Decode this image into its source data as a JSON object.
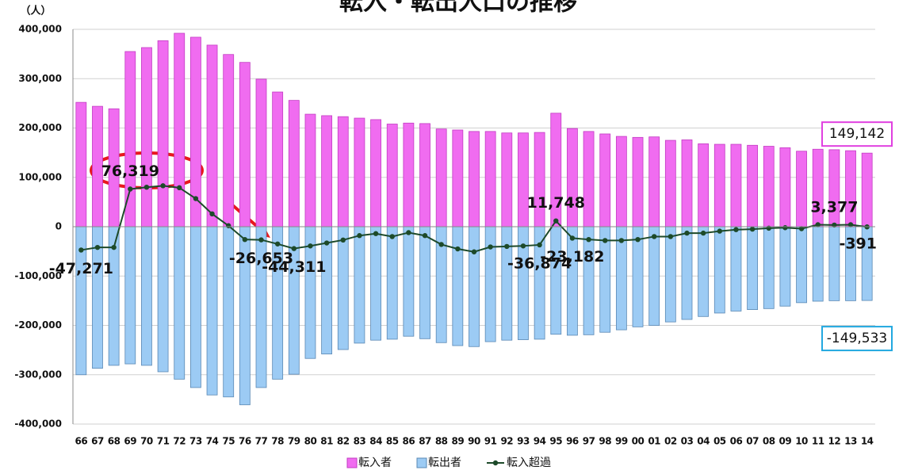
{
  "chart_data": {
    "type": "bar-line",
    "title": "転入・転出人口の推移",
    "y_unit": "（人）",
    "categories": [
      "66",
      "67",
      "68",
      "69",
      "70",
      "71",
      "72",
      "73",
      "74",
      "75",
      "76",
      "77",
      "78",
      "79",
      "80",
      "81",
      "82",
      "83",
      "84",
      "85",
      "86",
      "87",
      "88",
      "89",
      "90",
      "91",
      "92",
      "93",
      "94",
      "95",
      "96",
      "97",
      "98",
      "99",
      "00",
      "01",
      "02",
      "03",
      "04",
      "05",
      "06",
      "07",
      "08",
      "09",
      "10",
      "11",
      "12",
      "13",
      "14"
    ],
    "series": [
      {
        "name": "転入者",
        "type": "bar",
        "color": "#f06cf0",
        "values": [
          252000,
          244000,
          239000,
          355000,
          363000,
          377000,
          392000,
          384000,
          368000,
          349000,
          333000,
          299000,
          273000,
          256000,
          228000,
          225000,
          223000,
          220000,
          217000,
          208000,
          210000,
          209000,
          198000,
          196000,
          193000,
          193000,
          190000,
          190000,
          191000,
          230000,
          199000,
          193000,
          188000,
          183000,
          181000,
          182000,
          175000,
          176000,
          168000,
          167000,
          167000,
          165000,
          163000,
          160000,
          153000,
          157000,
          156000,
          154000,
          149142
        ],
        "value_labels": [
          null,
          null,
          null,
          null,
          null,
          null,
          null,
          null,
          null,
          null,
          null,
          null,
          null,
          null,
          null,
          null,
          null,
          null,
          null,
          null,
          null,
          null,
          null,
          null,
          null,
          null,
          null,
          null,
          null,
          null,
          null,
          null,
          null,
          null,
          null,
          null,
          null,
          null,
          null,
          null,
          null,
          null,
          null,
          null,
          null,
          null,
          null,
          null,
          "149,142"
        ]
      },
      {
        "name": "転出者",
        "type": "bar",
        "color": "#9ccbf4",
        "values": [
          -300000,
          -287000,
          -281000,
          -278000,
          -281000,
          -294000,
          -309000,
          -326000,
          -341000,
          -345000,
          -361000,
          -326000,
          -309000,
          -299000,
          -267000,
          -258000,
          -249000,
          -236000,
          -230000,
          -228000,
          -222000,
          -227000,
          -235000,
          -241000,
          -243000,
          -233000,
          -230000,
          -229000,
          -228000,
          -218000,
          -220000,
          -219000,
          -214000,
          -209000,
          -203000,
          -200000,
          -193000,
          -188000,
          -182000,
          -175000,
          -171000,
          -168000,
          -166000,
          -161000,
          -154000,
          -151000,
          -150000,
          -150000,
          -149533
        ],
        "value_labels": [
          null,
          null,
          null,
          null,
          null,
          null,
          null,
          null,
          null,
          null,
          null,
          null,
          null,
          null,
          null,
          null,
          null,
          null,
          null,
          null,
          null,
          null,
          null,
          null,
          null,
          null,
          null,
          null,
          null,
          null,
          null,
          null,
          null,
          null,
          null,
          null,
          null,
          null,
          null,
          null,
          null,
          null,
          null,
          null,
          null,
          null,
          null,
          null,
          "-149,533"
        ]
      },
      {
        "name": "転入超過",
        "type": "line",
        "color": "#1d4a2a",
        "values": [
          -47271,
          -42000,
          -42000,
          76319,
          80000,
          83000,
          79000,
          57000,
          26000,
          2000,
          -26000,
          -26653,
          -35000,
          -44311,
          -39000,
          -33000,
          -27000,
          -18000,
          -14000,
          -20000,
          -12000,
          -18000,
          -36000,
          -45000,
          -51000,
          -41000,
          -40000,
          -39000,
          -36874,
          11748,
          -23182,
          -26000,
          -28000,
          -28000,
          -26000,
          -20000,
          -20000,
          -13000,
          -13000,
          -9000,
          -6000,
          -5000,
          -3000,
          -2000,
          -4000,
          4000,
          3377,
          4000,
          -391
        ],
        "value_labels": [
          "-47,271",
          null,
          null,
          "76,319",
          null,
          null,
          null,
          null,
          null,
          null,
          null,
          "-26,653",
          null,
          "-44,311",
          null,
          null,
          null,
          null,
          null,
          null,
          null,
          null,
          null,
          null,
          null,
          null,
          null,
          null,
          "-36,874",
          "11,748",
          "-23,182",
          null,
          null,
          null,
          null,
          null,
          null,
          null,
          null,
          null,
          null,
          null,
          null,
          null,
          null,
          null,
          "3,377",
          null,
          "-391"
        ]
      }
    ],
    "ylim": [
      -400000,
      400000
    ],
    "yticks": [
      {
        "value": -400000,
        "label": "-400,000"
      },
      {
        "value": -300000,
        "label": "-300,000"
      },
      {
        "value": -200000,
        "label": "-200,000"
      },
      {
        "value": -100000,
        "label": "-100,000"
      },
      0,
      {
        "value": 100000,
        "label": "100,000"
      },
      {
        "value": 200000,
        "label": "200,000"
      },
      {
        "value": 300000,
        "label": "300,000"
      },
      {
        "value": 400000,
        "label": "400,000"
      }
    ],
    "grid": true,
    "legend": "bottom"
  }
}
